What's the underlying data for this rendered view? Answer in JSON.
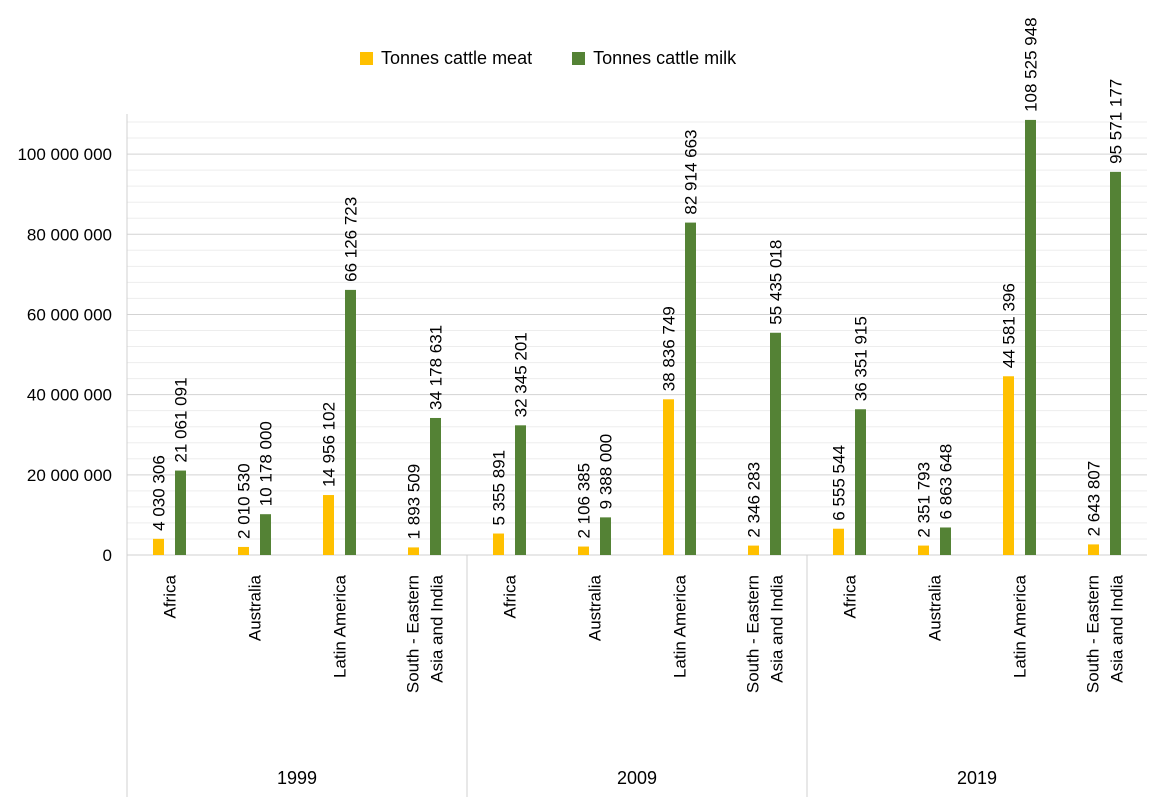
{
  "chart_data": {
    "type": "bar",
    "title": "",
    "xlabel": "",
    "ylabel": "",
    "ylim": [
      0,
      110000000
    ],
    "yticks": [
      0,
      20000000,
      40000000,
      60000000,
      80000000,
      100000000
    ],
    "ytick_labels": [
      "0",
      "20 000 000",
      "40 000 000",
      "60 000 000",
      "80 000 000",
      "100 000 000"
    ],
    "grid": true,
    "legend_position": "top",
    "groups": [
      "1999",
      "2009",
      "2019"
    ],
    "categories": [
      [
        "Africa"
      ],
      [
        "Australia"
      ],
      [
        "Latin America"
      ],
      [
        "South - Eastern",
        "Asia and India"
      ],
      [
        "Africa"
      ],
      [
        "Australia"
      ],
      [
        "Latin America"
      ],
      [
        "South - Eastern",
        "Asia and India"
      ],
      [
        "Africa"
      ],
      [
        "Australia"
      ],
      [
        "Latin America"
      ],
      [
        "South - Eastern",
        "Asia and India"
      ]
    ],
    "series": [
      {
        "name": "Tonnes cattle meat",
        "color": "#FFC000",
        "values": [
          4030306,
          2010530,
          14956102,
          1893509,
          5355891,
          2106385,
          38836749,
          2346283,
          6555544,
          2351793,
          44581396,
          2643807
        ],
        "labels": [
          "4 030 306",
          "2 010 530",
          "14 956 102",
          "1 893 509",
          "5 355 891",
          "2 106 385",
          "38 836 749",
          "2 346 283",
          "6 555 544",
          "2 351 793",
          "44 581 396",
          "2 643 807"
        ]
      },
      {
        "name": "Tonnes cattle milk",
        "color": "#548235",
        "values": [
          21061091,
          10178000,
          66126723,
          34178631,
          32345201,
          9388000,
          82914663,
          55435018,
          36351915,
          6863648,
          108525948,
          95571177
        ],
        "labels": [
          "21 061 091",
          "10 178 000",
          "66 126 723",
          "34 178 631",
          "32 345 201",
          "9 388 000",
          "82 914 663",
          "55 435 018",
          "36 351 915",
          "6 863 648",
          "108 525 948",
          "95 571 177"
        ]
      }
    ]
  }
}
